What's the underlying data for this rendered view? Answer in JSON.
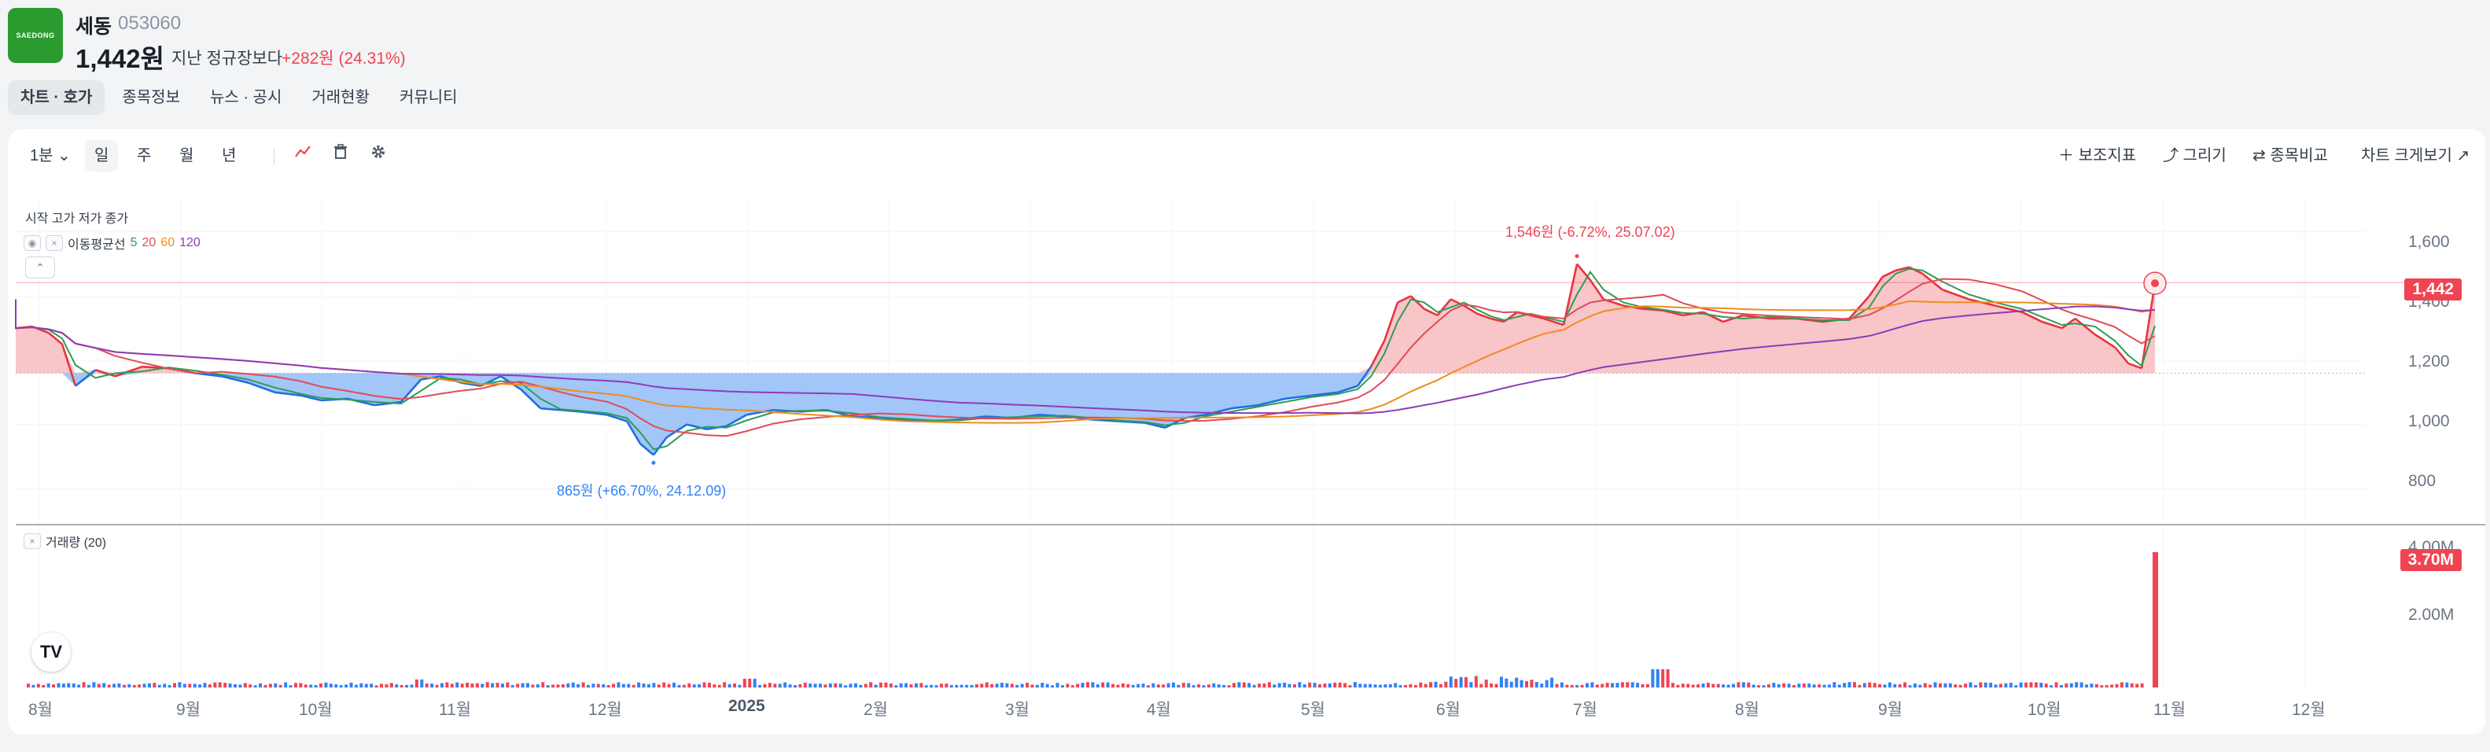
{
  "stock": {
    "logo_text": "SAEDONG",
    "name": "세동",
    "code": "053060",
    "price": "1,442원",
    "change_label": "지난 정규장보다",
    "change_value": "+282원 (24.31%)"
  },
  "tabs": [
    {
      "label": "차트 · 호가",
      "active": true
    },
    {
      "label": "종목정보"
    },
    {
      "label": "뉴스 · 공시"
    },
    {
      "label": "거래현황"
    },
    {
      "label": "커뮤니티"
    }
  ],
  "toolbar": {
    "interval": "1분",
    "periods": [
      "일",
      "주",
      "월",
      "년"
    ],
    "active_period": "일",
    "right": [
      "보조지표",
      "그리기",
      "종목비교",
      "차트 크게보기"
    ]
  },
  "legend": {
    "ohlc": "시작 고가 저가 종가",
    "ma_label": "이동평균선",
    "ma_periods": [
      "5",
      "20",
      "60",
      "120"
    ],
    "ma_colors": [
      "#2e9c56",
      "#e24b55",
      "#f08c1e",
      "#8e3bb8"
    ],
    "volume_label": "거래량 (20)"
  },
  "colors": {
    "up": "#f04452",
    "down": "#3182f6",
    "above_fill": "#f8c2c6",
    "below_fill": "#9cc3f7"
  },
  "annotations": {
    "high": "1,546원 (-6.72%, 25.07.02)",
    "low": "865원 (+66.70%, 24.12.09)"
  },
  "price_tag": "1,442",
  "volume_tag": "3.70M",
  "y_ticks": [
    "1,600",
    "1,400",
    "1,200",
    "1,000",
    "800"
  ],
  "volume_ticks": [
    "4.00M",
    "2.00M"
  ],
  "x_ticks": [
    "8월",
    "9월",
    "10월",
    "11월",
    "12월",
    "2025",
    "2월",
    "3월",
    "4월",
    "5월",
    "6월",
    "7월",
    "8월",
    "9월",
    "10월",
    "11월",
    "12월"
  ],
  "chart_data": {
    "type": "area",
    "baseline": 1160,
    "ylim": [
      700,
      1700
    ],
    "volume_ylim": [
      0,
      4300000
    ],
    "last_price": 1442,
    "last_volume": 3700000,
    "moving_averages": [
      5,
      20,
      60,
      120
    ],
    "price_series": [
      [
        0,
        1300
      ],
      [
        5,
        1305
      ],
      [
        10,
        1285
      ],
      [
        14,
        1250
      ],
      [
        18,
        1120
      ],
      [
        24,
        1170
      ],
      [
        30,
        1150
      ],
      [
        38,
        1180
      ],
      [
        46,
        1175
      ],
      [
        54,
        1160
      ],
      [
        62,
        1150
      ],
      [
        70,
        1130
      ],
      [
        78,
        1100
      ],
      [
        86,
        1090
      ],
      [
        92,
        1075
      ],
      [
        100,
        1080
      ],
      [
        108,
        1060
      ],
      [
        116,
        1070
      ],
      [
        122,
        1140
      ],
      [
        128,
        1150
      ],
      [
        134,
        1130
      ],
      [
        140,
        1120
      ],
      [
        146,
        1150
      ],
      [
        152,
        1110
      ],
      [
        158,
        1050
      ],
      [
        164,
        1045
      ],
      [
        170,
        1040
      ],
      [
        178,
        1030
      ],
      [
        184,
        1010
      ],
      [
        188,
        940
      ],
      [
        192,
        905
      ],
      [
        196,
        960
      ],
      [
        202,
        1000
      ],
      [
        208,
        985
      ],
      [
        214,
        995
      ],
      [
        220,
        1030
      ],
      [
        228,
        1045
      ],
      [
        236,
        1040
      ],
      [
        244,
        1045
      ],
      [
        252,
        1025
      ],
      [
        260,
        1020
      ],
      [
        268,
        1015
      ],
      [
        276,
        1010
      ],
      [
        284,
        1015
      ],
      [
        292,
        1025
      ],
      [
        300,
        1020
      ],
      [
        308,
        1030
      ],
      [
        316,
        1025
      ],
      [
        324,
        1015
      ],
      [
        332,
        1010
      ],
      [
        340,
        1005
      ],
      [
        346,
        990
      ],
      [
        352,
        1020
      ],
      [
        358,
        1030
      ],
      [
        366,
        1050
      ],
      [
        374,
        1060
      ],
      [
        382,
        1080
      ],
      [
        390,
        1090
      ],
      [
        398,
        1100
      ],
      [
        404,
        1120
      ],
      [
        408,
        1180
      ],
      [
        412,
        1260
      ],
      [
        416,
        1380
      ],
      [
        420,
        1400
      ],
      [
        424,
        1360
      ],
      [
        428,
        1340
      ],
      [
        432,
        1390
      ],
      [
        436,
        1370
      ],
      [
        440,
        1345
      ],
      [
        444,
        1330
      ],
      [
        448,
        1320
      ],
      [
        452,
        1350
      ],
      [
        456,
        1340
      ],
      [
        460,
        1330
      ],
      [
        466,
        1310
      ],
      [
        470,
        1500
      ],
      [
        474,
        1450
      ],
      [
        478,
        1390
      ],
      [
        484,
        1370
      ],
      [
        490,
        1360
      ],
      [
        496,
        1355
      ],
      [
        502,
        1340
      ],
      [
        508,
        1350
      ],
      [
        514,
        1320
      ],
      [
        520,
        1340
      ],
      [
        528,
        1330
      ],
      [
        536,
        1330
      ],
      [
        544,
        1320
      ],
      [
        552,
        1330
      ],
      [
        558,
        1400
      ],
      [
        562,
        1460
      ],
      [
        566,
        1480
      ],
      [
        570,
        1490
      ],
      [
        574,
        1470
      ],
      [
        580,
        1420
      ],
      [
        588,
        1390
      ],
      [
        596,
        1370
      ],
      [
        604,
        1350
      ],
      [
        610,
        1320
      ],
      [
        616,
        1300
      ],
      [
        620,
        1330
      ],
      [
        626,
        1280
      ],
      [
        632,
        1240
      ],
      [
        636,
        1190
      ],
      [
        640,
        1175
      ],
      [
        644,
        1440
      ]
    ]
  }
}
